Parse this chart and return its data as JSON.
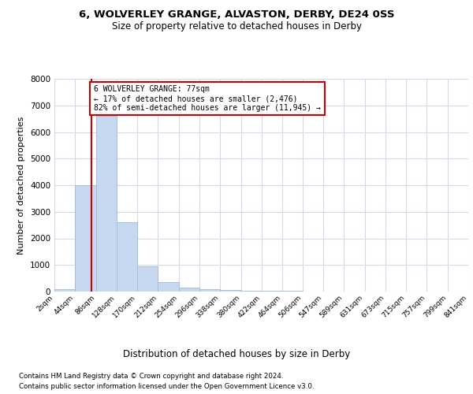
{
  "title1": "6, WOLVERLEY GRANGE, ALVASTON, DERBY, DE24 0SS",
  "title2": "Size of property relative to detached houses in Derby",
  "xlabel": "Distribution of detached houses by size in Derby",
  "ylabel": "Number of detached properties",
  "annotation_line1": "6 WOLVERLEY GRANGE: 77sqm",
  "annotation_line2": "← 17% of detached houses are smaller (2,476)",
  "annotation_line3": "82% of semi-detached houses are larger (11,945) →",
  "footer1": "Contains HM Land Registry data © Crown copyright and database right 2024.",
  "footer2": "Contains public sector information licensed under the Open Government Licence v3.0.",
  "bar_color": "#c5d8f0",
  "bar_edge_color": "#a8bfd8",
  "property_line_color": "#cc0000",
  "annotation_box_color": "#ffffff",
  "annotation_border_color": "#cc0000",
  "background_color": "#ffffff",
  "grid_color": "#d0daea",
  "bins": [
    2,
    44,
    86,
    128,
    170,
    212,
    254,
    296,
    338,
    380,
    422,
    464,
    506,
    547,
    589,
    631,
    673,
    715,
    757,
    799,
    841
  ],
  "counts": [
    100,
    4000,
    6600,
    2600,
    950,
    350,
    150,
    80,
    50,
    30,
    20,
    15,
    10,
    8,
    6,
    5,
    4,
    3,
    2,
    2
  ],
  "property_size": 77,
  "ylim": [
    0,
    8000
  ],
  "yticks": [
    0,
    1000,
    2000,
    3000,
    4000,
    5000,
    6000,
    7000,
    8000
  ]
}
